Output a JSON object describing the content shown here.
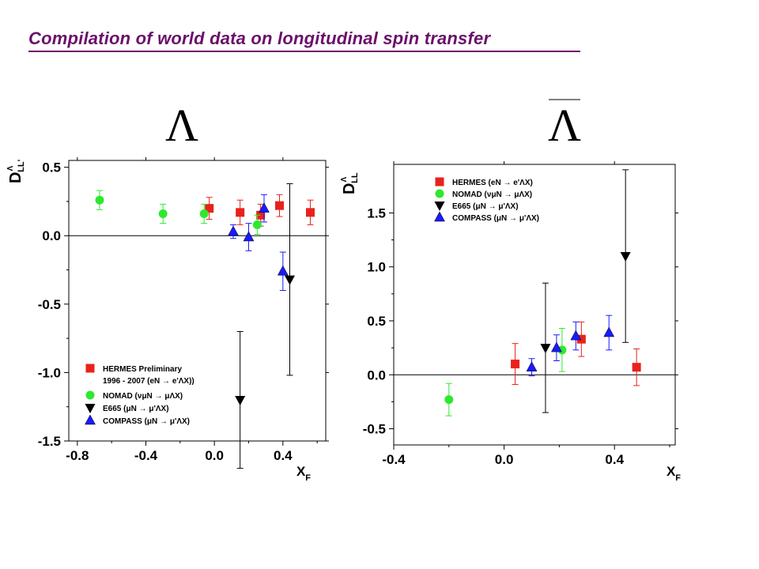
{
  "page": {
    "title": "Compilation of world data on longitudinal spin transfer"
  },
  "colors": {
    "title": "#6b0f6b",
    "hermes": "#e8221b",
    "nomad": "#2ee82e",
    "e665": "#000000",
    "compass": "#1a1aff"
  },
  "chart_data": [
    {
      "type": "scatter",
      "panel_title": "Λ",
      "ylabel": "D",
      "ylabel_sup": "Λ",
      "ylabel_sub": "LL'",
      "xlabel": "x",
      "xlabel_sub": "F",
      "xlim": [
        -0.85,
        0.65
      ],
      "ylim": [
        -1.5,
        0.55
      ],
      "xticks": [
        -0.8,
        -0.4,
        0.0,
        0.4
      ],
      "xtick_labels": [
        "-0.8",
        "-0.4",
        "0.0",
        "0.4"
      ],
      "yticks": [
        0.5,
        0.0,
        -0.5,
        -1.0,
        -1.5
      ],
      "ytick_labels": [
        "0.5",
        "0.0",
        "-0.5",
        "-1.0",
        "-1.5"
      ],
      "zero_line": true,
      "legend_position": "bottom-left",
      "legend": [
        {
          "series": "hermes",
          "label": "HERMES Preliminary",
          "label2": "1996 - 2007 (eN → e'ΛX))"
        },
        {
          "series": "nomad",
          "label": "NOMAD (νμN → μΛX)"
        },
        {
          "series": "e665",
          "label": "E665 (μN → μ'ΛX)"
        },
        {
          "series": "compass",
          "label": "COMPASS (μN → μ'ΛX)"
        }
      ],
      "series": [
        {
          "name": "HERMES Preliminary",
          "key": "hermes",
          "marker": "square",
          "points": [
            {
              "x": -0.03,
              "y": 0.2,
              "err": 0.08
            },
            {
              "x": 0.15,
              "y": 0.17,
              "err": 0.09
            },
            {
              "x": 0.27,
              "y": 0.15,
              "err": 0.08
            },
            {
              "x": 0.38,
              "y": 0.22,
              "err": 0.08
            },
            {
              "x": 0.56,
              "y": 0.17,
              "err": 0.09
            }
          ]
        },
        {
          "name": "NOMAD",
          "key": "nomad",
          "marker": "circle",
          "points": [
            {
              "x": -0.67,
              "y": 0.26,
              "err": 0.07
            },
            {
              "x": -0.3,
              "y": 0.16,
              "err": 0.07
            },
            {
              "x": -0.06,
              "y": 0.16,
              "err": 0.07
            },
            {
              "x": 0.25,
              "y": 0.08,
              "err": 0.07
            }
          ]
        },
        {
          "name": "E665",
          "key": "e665",
          "marker": "triangle-down",
          "points": [
            {
              "x": 0.15,
              "y": -1.2,
              "err": 0.5
            },
            {
              "x": 0.44,
              "y": -0.32,
              "err": 0.7
            }
          ]
        },
        {
          "name": "COMPASS",
          "key": "compass",
          "marker": "triangle-up",
          "points": [
            {
              "x": 0.11,
              "y": 0.03,
              "err": 0.05
            },
            {
              "x": 0.2,
              "y": -0.01,
              "err": 0.1
            },
            {
              "x": 0.29,
              "y": 0.2,
              "err": 0.1
            },
            {
              "x": 0.4,
              "y": -0.26,
              "err": 0.14
            }
          ]
        }
      ]
    },
    {
      "type": "scatter",
      "panel_title": "Λ",
      "panel_title_overline": true,
      "ylabel": "D",
      "ylabel_sup": "Λ",
      "ylabel_sub": "LL",
      "xlabel": "x",
      "xlabel_sub": "F",
      "xlim": [
        -0.4,
        0.62
      ],
      "ylim": [
        -0.65,
        1.95
      ],
      "xticks": [
        -0.4,
        0.0,
        0.4
      ],
      "xtick_labels": [
        "-0.4",
        "0.0",
        "0.4"
      ],
      "yticks": [
        1.5,
        1.0,
        0.5,
        0.0,
        -0.5
      ],
      "ytick_labels": [
        "1.5",
        "1.0",
        "0.5",
        "0.0",
        "-0.5"
      ],
      "zero_line": true,
      "legend_position": "top-left",
      "legend": [
        {
          "series": "hermes",
          "label": "HERMES (eN → e'ΛX)"
        },
        {
          "series": "nomad",
          "label": "NOMAD (νμN → μΛX)"
        },
        {
          "series": "e665",
          "label": "E665 (μN → μ'ΛX)"
        },
        {
          "series": "compass",
          "label": "COMPASS (μN → μ'ΛX)"
        }
      ],
      "series": [
        {
          "name": "HERMES",
          "key": "hermes",
          "marker": "square",
          "points": [
            {
              "x": 0.04,
              "y": 0.1,
              "err": 0.19
            },
            {
              "x": 0.28,
              "y": 0.33,
              "err": 0.16
            },
            {
              "x": 0.48,
              "y": 0.07,
              "err": 0.17
            }
          ]
        },
        {
          "name": "NOMAD",
          "key": "nomad",
          "marker": "circle",
          "points": [
            {
              "x": -0.2,
              "y": -0.23,
              "err": 0.15
            },
            {
              "x": 0.21,
              "y": 0.23,
              "err": 0.2
            }
          ]
        },
        {
          "name": "E665",
          "key": "e665",
          "marker": "triangle-down",
          "points": [
            {
              "x": 0.15,
              "y": 0.25,
              "err": 0.6
            },
            {
              "x": 0.44,
              "y": 1.1,
              "err": 0.8
            }
          ]
        },
        {
          "name": "COMPASS",
          "key": "compass",
          "marker": "triangle-up",
          "points": [
            {
              "x": 0.1,
              "y": 0.07,
              "err": 0.08
            },
            {
              "x": 0.19,
              "y": 0.25,
              "err": 0.12
            },
            {
              "x": 0.26,
              "y": 0.36,
              "err": 0.13
            },
            {
              "x": 0.38,
              "y": 0.39,
              "err": 0.16
            }
          ]
        }
      ]
    }
  ]
}
